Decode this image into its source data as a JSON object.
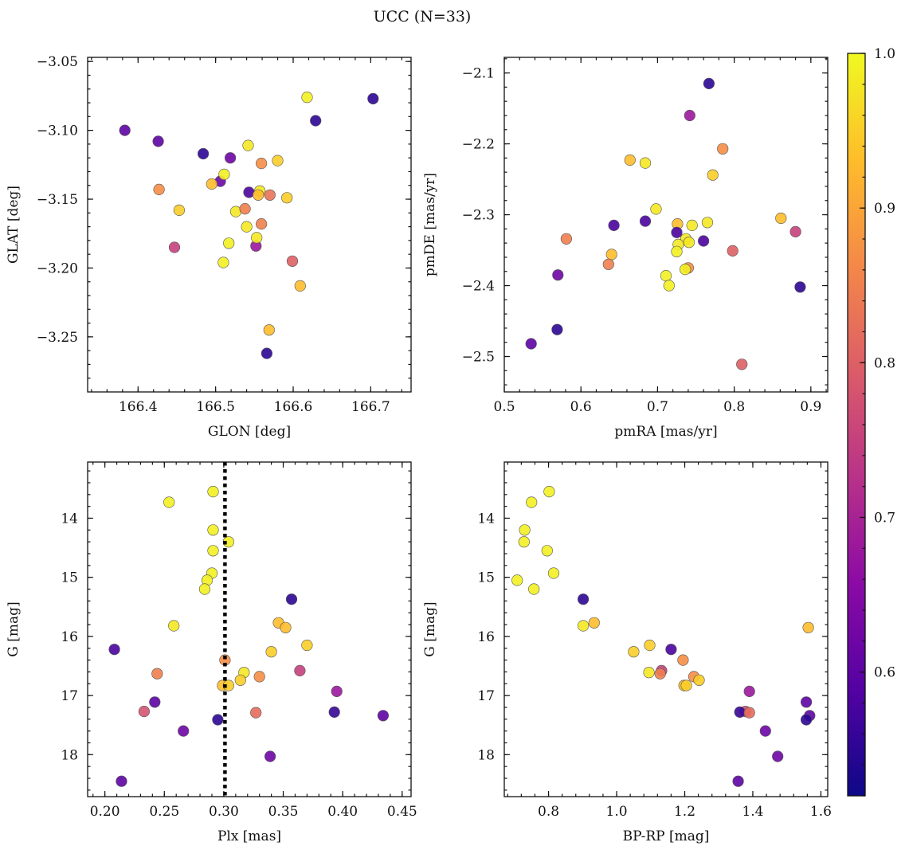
{
  "title": "UCC (N=33)",
  "colorbar": {
    "range": [
      0.52,
      1.0
    ],
    "ticks": [
      0.6,
      0.7,
      0.8,
      0.9,
      1.0
    ],
    "tick_labels": [
      "0.6",
      "0.7",
      "0.8",
      "0.9",
      "1.0"
    ],
    "colormap": [
      "#0d0887",
      "#5402a3",
      "#8b0aa5",
      "#b83289",
      "#db5c68",
      "#f48849",
      "#febd2a",
      "#f0f921"
    ]
  },
  "chart_data": [
    {
      "type": "scatter",
      "xlabel": "GLON [deg]",
      "ylabel": "GLAT [deg]",
      "xlim": [
        166.335,
        166.752
      ],
      "ylim": [
        -3.29,
        -3.047
      ],
      "y_inverted": false,
      "xticks": [
        166.4,
        166.5,
        166.6,
        166.7
      ],
      "xtick_labels": [
        "166.4",
        "166.5",
        "166.6",
        "166.7"
      ],
      "yticks": [
        -3.05,
        -3.1,
        -3.15,
        -3.2,
        -3.25
      ],
      "ytick_labels": [
        "−3.05",
        "−3.10",
        "−3.15",
        "−3.20",
        "−3.25"
      ],
      "points": [
        {
          "x": 166.383,
          "y": -3.1,
          "c": 0.6
        },
        {
          "x": 166.426,
          "y": -3.108,
          "c": 0.6
        },
        {
          "x": 166.484,
          "y": -3.117,
          "c": 0.55
        },
        {
          "x": 166.519,
          "y": -3.12,
          "c": 0.62
        },
        {
          "x": 166.506,
          "y": -3.137,
          "c": 0.62
        },
        {
          "x": 166.543,
          "y": -3.145,
          "c": 0.58
        },
        {
          "x": 166.552,
          "y": -3.184,
          "c": 0.68
        },
        {
          "x": 166.447,
          "y": -3.185,
          "c": 0.75
        },
        {
          "x": 166.427,
          "y": -3.143,
          "c": 0.87
        },
        {
          "x": 166.566,
          "y": -3.262,
          "c": 0.55
        },
        {
          "x": 166.629,
          "y": -3.093,
          "c": 0.55
        },
        {
          "x": 166.703,
          "y": -3.077,
          "c": 0.55
        },
        {
          "x": 166.618,
          "y": -3.076,
          "c": 0.99
        },
        {
          "x": 166.542,
          "y": -3.111,
          "c": 0.98
        },
        {
          "x": 166.58,
          "y": -3.122,
          "c": 0.95
        },
        {
          "x": 166.559,
          "y": -3.124,
          "c": 0.87
        },
        {
          "x": 166.511,
          "y": -3.132,
          "c": 0.99
        },
        {
          "x": 166.495,
          "y": -3.139,
          "c": 0.93
        },
        {
          "x": 166.557,
          "y": -3.144,
          "c": 0.98
        },
        {
          "x": 166.555,
          "y": -3.147,
          "c": 0.93
        },
        {
          "x": 166.57,
          "y": -3.147,
          "c": 0.83
        },
        {
          "x": 166.592,
          "y": -3.149,
          "c": 0.95
        },
        {
          "x": 166.453,
          "y": -3.158,
          "c": 0.95
        },
        {
          "x": 166.526,
          "y": -3.159,
          "c": 0.98
        },
        {
          "x": 166.538,
          "y": -3.157,
          "c": 0.85
        },
        {
          "x": 166.559,
          "y": -3.168,
          "c": 0.85
        },
        {
          "x": 166.54,
          "y": -3.17,
          "c": 0.98
        },
        {
          "x": 166.553,
          "y": -3.178,
          "c": 0.98
        },
        {
          "x": 166.517,
          "y": -3.182,
          "c": 0.99
        },
        {
          "x": 166.51,
          "y": -3.196,
          "c": 0.99
        },
        {
          "x": 166.599,
          "y": -3.195,
          "c": 0.8
        },
        {
          "x": 166.609,
          "y": -3.213,
          "c": 0.93
        },
        {
          "x": 166.569,
          "y": -3.245,
          "c": 0.93
        }
      ]
    },
    {
      "type": "scatter",
      "xlabel": "pmRA [mas/yr]",
      "ylabel": "pmDE [mas/yr]",
      "xlim": [
        0.5,
        0.922
      ],
      "ylim": [
        -2.55,
        -2.078
      ],
      "y_inverted": false,
      "xticks": [
        0.5,
        0.6,
        0.7,
        0.8,
        0.9
      ],
      "xtick_labels": [
        "0.5",
        "0.6",
        "0.7",
        "0.8",
        "0.9"
      ],
      "yticks": [
        -2.1,
        -2.2,
        -2.3,
        -2.4,
        -2.5
      ],
      "ytick_labels": [
        "−2.1",
        "−2.2",
        "−2.3",
        "−2.4",
        "−2.5"
      ],
      "points": [
        {
          "x": 0.767,
          "y": -2.115,
          "c": 0.55
        },
        {
          "x": 0.742,
          "y": -2.16,
          "c": 0.68
        },
        {
          "x": 0.785,
          "y": -2.207,
          "c": 0.87
        },
        {
          "x": 0.664,
          "y": -2.223,
          "c": 0.93
        },
        {
          "x": 0.684,
          "y": -2.227,
          "c": 0.98
        },
        {
          "x": 0.772,
          "y": -2.244,
          "c": 0.95
        },
        {
          "x": 0.698,
          "y": -2.292,
          "c": 0.98
        },
        {
          "x": 0.861,
          "y": -2.305,
          "c": 0.93
        },
        {
          "x": 0.684,
          "y": -2.309,
          "c": 0.58
        },
        {
          "x": 0.765,
          "y": -2.311,
          "c": 0.98
        },
        {
          "x": 0.726,
          "y": -2.313,
          "c": 0.93
        },
        {
          "x": 0.745,
          "y": -2.315,
          "c": 0.98
        },
        {
          "x": 0.643,
          "y": -2.315,
          "c": 0.58
        },
        {
          "x": 0.88,
          "y": -2.324,
          "c": 0.75
        },
        {
          "x": 0.725,
          "y": -2.325,
          "c": 0.58
        },
        {
          "x": 0.581,
          "y": -2.334,
          "c": 0.85
        },
        {
          "x": 0.737,
          "y": -2.334,
          "c": 0.98
        },
        {
          "x": 0.76,
          "y": -2.337,
          "c": 0.58
        },
        {
          "x": 0.741,
          "y": -2.339,
          "c": 0.98
        },
        {
          "x": 0.727,
          "y": -2.342,
          "c": 0.98
        },
        {
          "x": 0.725,
          "y": -2.352,
          "c": 0.99
        },
        {
          "x": 0.798,
          "y": -2.351,
          "c": 0.8
        },
        {
          "x": 0.64,
          "y": -2.356,
          "c": 0.93
        },
        {
          "x": 0.636,
          "y": -2.37,
          "c": 0.85
        },
        {
          "x": 0.74,
          "y": -2.375,
          "c": 0.87
        },
        {
          "x": 0.736,
          "y": -2.377,
          "c": 0.99
        },
        {
          "x": 0.57,
          "y": -2.385,
          "c": 0.62
        },
        {
          "x": 0.711,
          "y": -2.386,
          "c": 0.99
        },
        {
          "x": 0.715,
          "y": -2.4,
          "c": 0.99
        },
        {
          "x": 0.886,
          "y": -2.402,
          "c": 0.55
        },
        {
          "x": 0.569,
          "y": -2.462,
          "c": 0.55
        },
        {
          "x": 0.535,
          "y": -2.482,
          "c": 0.6
        },
        {
          "x": 0.81,
          "y": -2.511,
          "c": 0.8
        }
      ]
    },
    {
      "type": "scatter",
      "xlabel": "Plx [mas]",
      "ylabel": "G [mag]",
      "xlim": [
        0.1855,
        0.4575
      ],
      "ylim": [
        18.71,
        13.05
      ],
      "y_inverted": true,
      "xticks": [
        0.2,
        0.25,
        0.3,
        0.35,
        0.4,
        0.45
      ],
      "xtick_labels": [
        "0.20",
        "0.25",
        "0.30",
        "0.35",
        "0.40",
        "0.45"
      ],
      "yticks": [
        14,
        15,
        16,
        17,
        18
      ],
      "ytick_labels": [
        "14",
        "15",
        "16",
        "17",
        "18"
      ],
      "vline": {
        "x": 0.301
      },
      "points": [
        {
          "x": 0.291,
          "y": 13.55,
          "c": 0.99
        },
        {
          "x": 0.254,
          "y": 13.73,
          "c": 0.99
        },
        {
          "x": 0.291,
          "y": 14.2,
          "c": 0.99
        },
        {
          "x": 0.304,
          "y": 14.4,
          "c": 0.99
        },
        {
          "x": 0.291,
          "y": 14.55,
          "c": 0.99
        },
        {
          "x": 0.29,
          "y": 14.93,
          "c": 0.99
        },
        {
          "x": 0.286,
          "y": 15.05,
          "c": 0.99
        },
        {
          "x": 0.284,
          "y": 15.2,
          "c": 0.99
        },
        {
          "x": 0.357,
          "y": 15.37,
          "c": 0.55
        },
        {
          "x": 0.346,
          "y": 15.77,
          "c": 0.93
        },
        {
          "x": 0.258,
          "y": 15.82,
          "c": 0.98
        },
        {
          "x": 0.352,
          "y": 15.85,
          "c": 0.93
        },
        {
          "x": 0.37,
          "y": 16.15,
          "c": 0.95
        },
        {
          "x": 0.208,
          "y": 16.22,
          "c": 0.58
        },
        {
          "x": 0.34,
          "y": 16.26,
          "c": 0.95
        },
        {
          "x": 0.301,
          "y": 16.4,
          "c": 0.87
        },
        {
          "x": 0.364,
          "y": 16.58,
          "c": 0.75
        },
        {
          "x": 0.317,
          "y": 16.61,
          "c": 0.98
        },
        {
          "x": 0.244,
          "y": 16.63,
          "c": 0.85
        },
        {
          "x": 0.33,
          "y": 16.68,
          "c": 0.87
        },
        {
          "x": 0.314,
          "y": 16.74,
          "c": 0.95
        },
        {
          "x": 0.299,
          "y": 16.83,
          "c": 0.93
        },
        {
          "x": 0.304,
          "y": 16.83,
          "c": 0.95
        },
        {
          "x": 0.395,
          "y": 16.93,
          "c": 0.68
        },
        {
          "x": 0.242,
          "y": 17.11,
          "c": 0.6
        },
        {
          "x": 0.233,
          "y": 17.27,
          "c": 0.78
        },
        {
          "x": 0.393,
          "y": 17.28,
          "c": 0.56
        },
        {
          "x": 0.327,
          "y": 17.29,
          "c": 0.82
        },
        {
          "x": 0.434,
          "y": 17.34,
          "c": 0.6
        },
        {
          "x": 0.295,
          "y": 17.41,
          "c": 0.55
        },
        {
          "x": 0.266,
          "y": 17.6,
          "c": 0.62
        },
        {
          "x": 0.339,
          "y": 18.03,
          "c": 0.62
        },
        {
          "x": 0.214,
          "y": 18.45,
          "c": 0.6
        }
      ]
    },
    {
      "type": "scatter",
      "xlabel": "BP-RP [mag]",
      "ylabel": "G [mag]",
      "xlim": [
        0.67,
        1.62
      ],
      "ylim": [
        18.71,
        13.05
      ],
      "y_inverted": true,
      "xticks": [
        0.8,
        1.0,
        1.2,
        1.4,
        1.6
      ],
      "xtick_labels": [
        "0.8",
        "1.0",
        "1.2",
        "1.4",
        "1.6"
      ],
      "yticks": [
        14,
        15,
        16,
        17,
        18
      ],
      "ytick_labels": [
        "14",
        "15",
        "16",
        "17",
        "18"
      ],
      "points": [
        {
          "x": 0.802,
          "y": 13.55,
          "c": 0.99
        },
        {
          "x": 0.75,
          "y": 13.73,
          "c": 0.99
        },
        {
          "x": 0.73,
          "y": 14.2,
          "c": 0.99
        },
        {
          "x": 0.728,
          "y": 14.4,
          "c": 0.99
        },
        {
          "x": 0.796,
          "y": 14.55,
          "c": 0.99
        },
        {
          "x": 0.815,
          "y": 14.93,
          "c": 0.99
        },
        {
          "x": 0.708,
          "y": 15.05,
          "c": 0.99
        },
        {
          "x": 0.757,
          "y": 15.2,
          "c": 0.99
        },
        {
          "x": 0.902,
          "y": 15.37,
          "c": 0.55
        },
        {
          "x": 0.934,
          "y": 15.77,
          "c": 0.93
        },
        {
          "x": 0.902,
          "y": 15.82,
          "c": 0.98
        },
        {
          "x": 1.563,
          "y": 15.85,
          "c": 0.93
        },
        {
          "x": 1.097,
          "y": 16.15,
          "c": 0.95
        },
        {
          "x": 1.16,
          "y": 16.22,
          "c": 0.58
        },
        {
          "x": 1.05,
          "y": 16.26,
          "c": 0.95
        },
        {
          "x": 1.195,
          "y": 16.4,
          "c": 0.87
        },
        {
          "x": 1.132,
          "y": 16.58,
          "c": 0.75
        },
        {
          "x": 1.095,
          "y": 16.61,
          "c": 0.98
        },
        {
          "x": 1.128,
          "y": 16.63,
          "c": 0.85
        },
        {
          "x": 1.227,
          "y": 16.68,
          "c": 0.87
        },
        {
          "x": 1.242,
          "y": 16.74,
          "c": 0.95
        },
        {
          "x": 1.198,
          "y": 16.83,
          "c": 0.93
        },
        {
          "x": 1.205,
          "y": 16.83,
          "c": 0.95
        },
        {
          "x": 1.39,
          "y": 16.93,
          "c": 0.68
        },
        {
          "x": 1.557,
          "y": 17.11,
          "c": 0.6
        },
        {
          "x": 1.378,
          "y": 17.27,
          "c": 0.78
        },
        {
          "x": 1.362,
          "y": 17.28,
          "c": 0.56
        },
        {
          "x": 1.39,
          "y": 17.29,
          "c": 0.82
        },
        {
          "x": 1.567,
          "y": 17.34,
          "c": 0.6
        },
        {
          "x": 1.557,
          "y": 17.41,
          "c": 0.55
        },
        {
          "x": 1.437,
          "y": 17.6,
          "c": 0.62
        },
        {
          "x": 1.473,
          "y": 18.03,
          "c": 0.62
        },
        {
          "x": 1.357,
          "y": 18.45,
          "c": 0.6
        }
      ]
    }
  ]
}
